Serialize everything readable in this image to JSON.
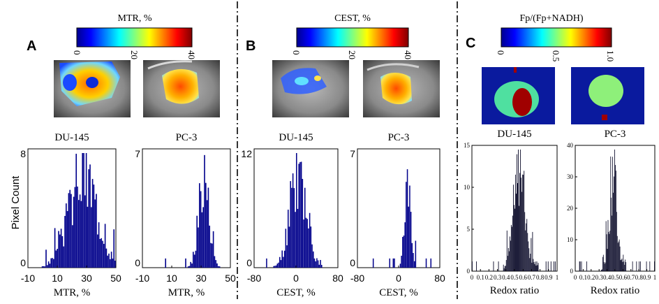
{
  "panels": {
    "A": {
      "letter": "A",
      "colorbar": {
        "title": "MTR, %",
        "ticks": [
          "0",
          "20",
          "40"
        ],
        "colormap": "jet"
      },
      "images": [
        "DU-145",
        "PC-3"
      ]
    },
    "B": {
      "letter": "B",
      "colorbar": {
        "title": "CEST, %",
        "ticks": [
          "0",
          "20",
          "40"
        ],
        "colormap": "jet"
      },
      "images": [
        "DU-145",
        "PC-3"
      ]
    },
    "C": {
      "letter": "C",
      "colorbar": {
        "title": "Fp/(Fp+NADH)",
        "ticks": [
          "0",
          "0.5",
          "1.0"
        ],
        "colormap": "jet"
      },
      "images": [
        "DU-145",
        "PC-3"
      ]
    }
  },
  "y_axis_label": "Pixel Count",
  "chart_data": [
    {
      "id": "a1",
      "type": "bar",
      "title": "DU-145",
      "xlabel": "MTR, %",
      "ylabel": "Pixel Count",
      "xlim": [
        -10,
        50
      ],
      "ylim": [
        0,
        8
      ],
      "xticks": [
        "-10",
        "10",
        "30",
        "50"
      ],
      "yticks": [
        "0",
        "8"
      ],
      "color": "#00008b"
    },
    {
      "id": "a2",
      "type": "bar",
      "title": "PC-3",
      "xlabel": "MTR, %",
      "xlim": [
        -10,
        50
      ],
      "ylim": [
        0,
        7
      ],
      "xticks": [
        "-10",
        "10",
        "30",
        "50"
      ],
      "yticks": [
        "0",
        "7"
      ],
      "color": "#00008b"
    },
    {
      "id": "b1",
      "type": "bar",
      "title": "DU-145",
      "xlabel": "CEST, %",
      "xlim": [
        -80,
        80
      ],
      "ylim": [
        0,
        12
      ],
      "xticks": [
        "-80",
        "0",
        "80"
      ],
      "yticks": [
        "0",
        "12"
      ],
      "color": "#00008b"
    },
    {
      "id": "b2",
      "type": "bar",
      "title": "PC-3",
      "xlabel": "CEST, %",
      "xlim": [
        -80,
        80
      ],
      "ylim": [
        0,
        7
      ],
      "xticks": [
        "-80",
        "0",
        "80"
      ],
      "yticks": [
        "0",
        "7"
      ],
      "color": "#00008b"
    },
    {
      "id": "c1",
      "type": "bar",
      "title": "DU-145",
      "xlabel": "Redox ratio",
      "xlim": [
        0,
        1
      ],
      "ylim": [
        0,
        15
      ],
      "xticks": [
        "0",
        "0.1",
        "0.2",
        "0.3",
        "0.4",
        "0.5",
        "0.6",
        "0.7",
        "0.8",
        "0.9",
        "1"
      ],
      "yticks": [
        "0",
        "5",
        "10",
        "15"
      ],
      "color": "#0a0a28"
    },
    {
      "id": "c2",
      "type": "bar",
      "title": "PC-3",
      "xlabel": "Redox ratio",
      "xlim": [
        0,
        1
      ],
      "ylim": [
        0,
        40
      ],
      "xticks": [
        "0",
        "0.1",
        "0.2",
        "0.3",
        "0.4",
        "0.5",
        "0.6",
        "0.7",
        "0.8",
        "0.9",
        "1"
      ],
      "yticks": [
        "0",
        "10",
        "20",
        "30",
        "40"
      ],
      "color": "#0a0a28"
    }
  ]
}
